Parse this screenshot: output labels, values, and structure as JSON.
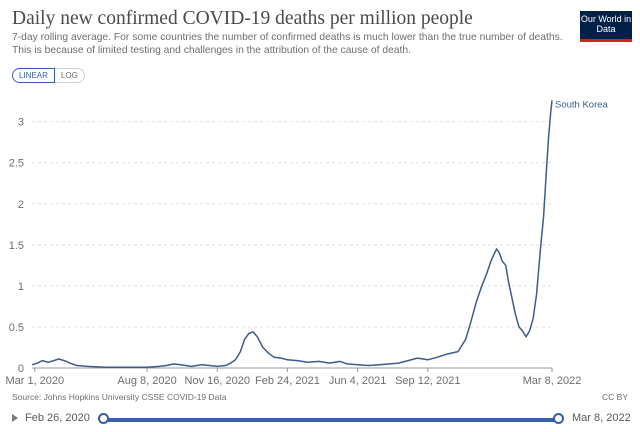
{
  "header": {
    "title": "Daily new confirmed COVID-19 deaths per million people",
    "subtitle": "7-day rolling average. For some countries the number of confirmed deaths is much lower than the true number of deaths. This is because of limited testing and challenges in the attribution of the cause of death.",
    "logo_text": "Our World in Data"
  },
  "scale_toggle": {
    "linear": "LINEAR",
    "log": "LOG",
    "active": "LINEAR"
  },
  "footer": {
    "source": "Source: Johns Hopkins University CSSE COVID-19 Data",
    "license": "CC BY"
  },
  "timeline": {
    "start": "Feb 26, 2020",
    "end": "Mar 8, 2022"
  },
  "colors": {
    "series": "#3c5c8f",
    "accent": "#3360a9",
    "grid": "#dddddd",
    "logo_bg": "#002147",
    "logo_bar": "#ce261e"
  },
  "chart_data": {
    "type": "line",
    "title": "Daily new confirmed COVID-19 deaths per million people",
    "x_axis": {
      "type": "date",
      "range": [
        "2020-02-26",
        "2022-03-08"
      ],
      "ticks": [
        {
          "date": "2020-03-01",
          "label": "Mar 1, 2020"
        },
        {
          "date": "2020-08-08",
          "label": "Aug 8, 2020"
        },
        {
          "date": "2020-11-16",
          "label": "Nov 16, 2020"
        },
        {
          "date": "2021-02-24",
          "label": "Feb 24, 2021"
        },
        {
          "date": "2021-06-04",
          "label": "Jun 4, 2021"
        },
        {
          "date": "2021-09-12",
          "label": "Sep 12, 2021"
        },
        {
          "date": "2022-03-08",
          "label": "Mar 8, 2022"
        }
      ]
    },
    "y_axis": {
      "range": [
        0,
        3.3
      ],
      "ticks": [
        0,
        0.5,
        1,
        1.5,
        2,
        2.5,
        3
      ],
      "tick_labels": [
        "0",
        "0.5",
        "1",
        "1.5",
        "2",
        "2.5",
        "3"
      ]
    },
    "grid": true,
    "series": [
      {
        "name": "South Korea",
        "points": [
          [
            "2020-02-26",
            0.04
          ],
          [
            "2020-03-05",
            0.06
          ],
          [
            "2020-03-12",
            0.09
          ],
          [
            "2020-03-20",
            0.07
          ],
          [
            "2020-03-28",
            0.09
          ],
          [
            "2020-04-04",
            0.11
          ],
          [
            "2020-04-12",
            0.09
          ],
          [
            "2020-04-20",
            0.06
          ],
          [
            "2020-04-30",
            0.03
          ],
          [
            "2020-05-15",
            0.02
          ],
          [
            "2020-06-10",
            0.01
          ],
          [
            "2020-07-10",
            0.01
          ],
          [
            "2020-08-08",
            0.01
          ],
          [
            "2020-08-25",
            0.02
          ],
          [
            "2020-09-05",
            0.03
          ],
          [
            "2020-09-15",
            0.05
          ],
          [
            "2020-09-25",
            0.04
          ],
          [
            "2020-10-10",
            0.02
          ],
          [
            "2020-10-25",
            0.04
          ],
          [
            "2020-11-05",
            0.03
          ],
          [
            "2020-11-16",
            0.02
          ],
          [
            "2020-11-28",
            0.03
          ],
          [
            "2020-12-05",
            0.06
          ],
          [
            "2020-12-12",
            0.1
          ],
          [
            "2020-12-19",
            0.2
          ],
          [
            "2020-12-25",
            0.35
          ],
          [
            "2020-12-31",
            0.42
          ],
          [
            "2021-01-06",
            0.44
          ],
          [
            "2021-01-12",
            0.38
          ],
          [
            "2021-01-20",
            0.25
          ],
          [
            "2021-01-28",
            0.18
          ],
          [
            "2021-02-05",
            0.13
          ],
          [
            "2021-02-15",
            0.12
          ],
          [
            "2021-02-24",
            0.1
          ],
          [
            "2021-03-10",
            0.09
          ],
          [
            "2021-03-25",
            0.07
          ],
          [
            "2021-04-10",
            0.08
          ],
          [
            "2021-04-25",
            0.06
          ],
          [
            "2021-05-10",
            0.08
          ],
          [
            "2021-05-20",
            0.05
          ],
          [
            "2021-06-04",
            0.04
          ],
          [
            "2021-06-20",
            0.03
          ],
          [
            "2021-07-05",
            0.04
          ],
          [
            "2021-07-20",
            0.05
          ],
          [
            "2021-08-01",
            0.06
          ],
          [
            "2021-08-15",
            0.09
          ],
          [
            "2021-08-28",
            0.12
          ],
          [
            "2021-09-12",
            0.1
          ],
          [
            "2021-09-25",
            0.13
          ],
          [
            "2021-10-10",
            0.17
          ],
          [
            "2021-10-25",
            0.2
          ],
          [
            "2021-11-05",
            0.35
          ],
          [
            "2021-11-12",
            0.55
          ],
          [
            "2021-11-20",
            0.8
          ],
          [
            "2021-11-28",
            1.0
          ],
          [
            "2021-12-05",
            1.15
          ],
          [
            "2021-12-11",
            1.3
          ],
          [
            "2021-12-15",
            1.38
          ],
          [
            "2021-12-19",
            1.45
          ],
          [
            "2021-12-23",
            1.4
          ],
          [
            "2021-12-27",
            1.3
          ],
          [
            "2022-01-01",
            1.25
          ],
          [
            "2022-01-05",
            1.05
          ],
          [
            "2022-01-10",
            0.85
          ],
          [
            "2022-01-15",
            0.65
          ],
          [
            "2022-01-20",
            0.5
          ],
          [
            "2022-01-25",
            0.45
          ],
          [
            "2022-01-30",
            0.38
          ],
          [
            "2022-02-04",
            0.45
          ],
          [
            "2022-02-09",
            0.6
          ],
          [
            "2022-02-14",
            0.9
          ],
          [
            "2022-02-19",
            1.4
          ],
          [
            "2022-02-24",
            1.85
          ],
          [
            "2022-02-28",
            2.4
          ],
          [
            "2022-03-03",
            2.8
          ],
          [
            "2022-03-06",
            3.1
          ],
          [
            "2022-03-08",
            3.26
          ]
        ]
      }
    ]
  }
}
